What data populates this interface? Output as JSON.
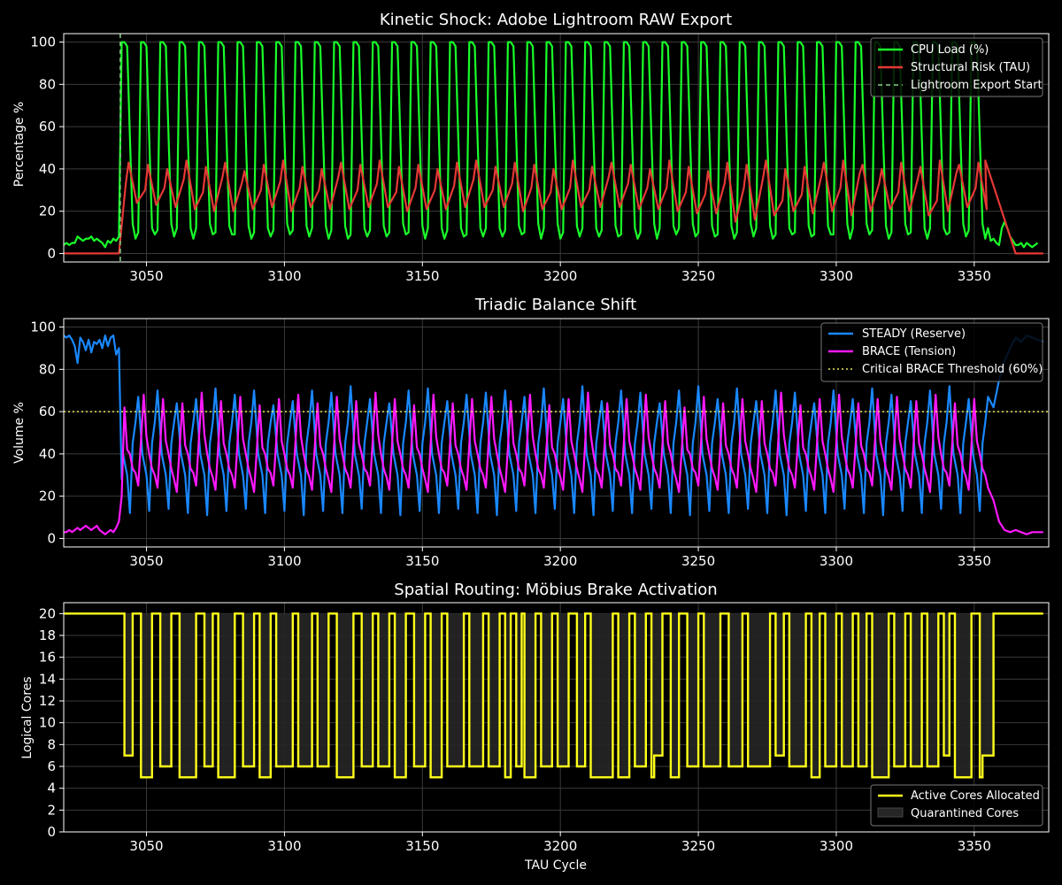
{
  "colors": {
    "background": "#000000",
    "axes_edge": "#ffffff",
    "grid": "#3a3a3a",
    "cpu": "#19ff2a",
    "risk": "#e53935",
    "steady": "#1a88ff",
    "brace": "#ff19ff",
    "threshold": "#e6e65a",
    "cores": "#ffff1a",
    "quarantine": "#262626",
    "export_marker": "#88cc88"
  },
  "chart_data": [
    {
      "id": "kinetic",
      "type": "line",
      "title": "Kinetic Shock: Adobe Lightroom RAW Export",
      "xlabel": "",
      "ylabel": "Percentage %",
      "xlim": [
        3020,
        3377
      ],
      "ylim": [
        -4,
        104
      ],
      "xticks": [
        3050,
        3100,
        3150,
        3200,
        3250,
        3300,
        3350
      ],
      "yticks": [
        0,
        20,
        40,
        60,
        80,
        100
      ],
      "grid": true,
      "legend_position": "top-right",
      "vline": {
        "x": 3040.5,
        "label": "Lightroom Export Start"
      },
      "series": [
        {
          "name": "CPU Load (%)",
          "style": "cpu",
          "x_start": 3020,
          "x_end": 3375,
          "pre_values": [
            4,
            5,
            4,
            5,
            5,
            8,
            7,
            6,
            7,
            7,
            8,
            6,
            7,
            6,
            5,
            3,
            6,
            5,
            7,
            6,
            8
          ],
          "post_values": [
            4,
            5,
            3,
            5,
            4,
            3,
            4,
            5
          ]
        },
        {
          "name": "Structural Risk (TAU)",
          "style": "risk",
          "x_start": 3020,
          "x_end": 3375
        }
      ],
      "cycles": [
        {
          "s": 3041,
          "p": 41,
          "r": 24,
          "e": 33,
          "t": 43
        },
        {
          "s": 3048,
          "p": 36,
          "r": 23,
          "e": 30,
          "t": 42
        },
        {
          "s": 3055,
          "p": 38,
          "r": 22,
          "e": 31,
          "t": 40
        },
        {
          "s": 3062,
          "p": 42,
          "r": 21,
          "e": 35,
          "t": 44
        },
        {
          "s": 3069,
          "p": 35,
          "r": 20,
          "e": 29,
          "t": 41
        },
        {
          "s": 3076,
          "p": 43,
          "r": 20,
          "e": 36,
          "t": 43
        },
        {
          "s": 3083,
          "p": 40,
          "r": 21,
          "e": 33,
          "t": 39
        },
        {
          "s": 3090,
          "p": 36,
          "r": 22,
          "e": 30,
          "t": 42
        },
        {
          "s": 3097,
          "p": 41,
          "r": 20,
          "e": 34,
          "t": 44
        },
        {
          "s": 3104,
          "p": 37,
          "r": 22,
          "e": 31,
          "t": 41
        },
        {
          "s": 3111,
          "p": 34,
          "r": 21,
          "e": 30,
          "t": 40
        },
        {
          "s": 3118,
          "p": 43,
          "r": 21,
          "e": 36,
          "t": 43
        },
        {
          "s": 3125,
          "p": 36,
          "r": 22,
          "e": 30,
          "t": 42
        },
        {
          "s": 3132,
          "p": 40,
          "r": 22,
          "e": 33,
          "t": 44
        },
        {
          "s": 3139,
          "p": 35,
          "r": 20,
          "e": 29,
          "t": 41
        },
        {
          "s": 3146,
          "p": 37,
          "r": 21,
          "e": 31,
          "t": 42
        },
        {
          "s": 3153,
          "p": 36,
          "r": 21,
          "e": 30,
          "t": 40
        },
        {
          "s": 3160,
          "p": 39,
          "r": 22,
          "e": 32,
          "t": 43
        },
        {
          "s": 3167,
          "p": 42,
          "r": 22,
          "e": 35,
          "t": 44
        },
        {
          "s": 3174,
          "p": 36,
          "r": 22,
          "e": 30,
          "t": 41
        },
        {
          "s": 3181,
          "p": 40,
          "r": 20,
          "e": 33,
          "t": 43
        },
        {
          "s": 3188,
          "p": 38,
          "r": 21,
          "e": 31,
          "t": 42
        },
        {
          "s": 3195,
          "p": 35,
          "r": 21,
          "e": 29,
          "t": 40
        },
        {
          "s": 3202,
          "p": 37,
          "r": 22,
          "e": 31,
          "t": 44
        },
        {
          "s": 3209,
          "p": 36,
          "r": 22,
          "e": 30,
          "t": 41
        },
        {
          "s": 3216,
          "p": 43,
          "r": 22,
          "e": 36,
          "t": 43
        },
        {
          "s": 3223,
          "p": 39,
          "r": 21,
          "e": 33,
          "t": 42
        },
        {
          "s": 3230,
          "p": 38,
          "r": 21,
          "e": 31,
          "t": 40
        },
        {
          "s": 3237,
          "p": 37,
          "r": 20,
          "e": 31,
          "t": 44
        },
        {
          "s": 3244,
          "p": 35,
          "r": 19,
          "e": 29,
          "t": 41
        },
        {
          "s": 3251,
          "p": 34,
          "r": 19,
          "e": 28,
          "t": 39
        },
        {
          "s": 3258,
          "p": 40,
          "r": 15,
          "e": 33,
          "t": 43
        },
        {
          "s": 3265,
          "p": 38,
          "r": 16,
          "e": 31,
          "t": 42
        },
        {
          "s": 3272,
          "p": 43,
          "r": 18,
          "e": 36,
          "t": 44
        },
        {
          "s": 3279,
          "p": 30,
          "r": 20,
          "e": 25,
          "t": 40
        },
        {
          "s": 3286,
          "p": 34,
          "r": 19,
          "e": 28,
          "t": 41
        },
        {
          "s": 3293,
          "p": 43,
          "r": 20,
          "e": 36,
          "t": 43
        },
        {
          "s": 3300,
          "p": 38,
          "r": 18,
          "e": 31,
          "t": 44
        },
        {
          "s": 3307,
          "p": 47,
          "r": 20,
          "e": 38,
          "t": 42
        },
        {
          "s": 3314,
          "p": 40,
          "r": 21,
          "e": 33,
          "t": 40
        },
        {
          "s": 3321,
          "p": 35,
          "r": 20,
          "e": 29,
          "t": 43
        },
        {
          "s": 3328,
          "p": 42,
          "r": 18,
          "e": 35,
          "t": 41
        },
        {
          "s": 3335,
          "p": 30,
          "r": 20,
          "e": 25,
          "t": 44
        },
        {
          "s": 3342,
          "p": 47,
          "r": 22,
          "e": 38,
          "t": 42
        },
        {
          "s": 3349,
          "p": 38,
          "r": 21,
          "e": 31,
          "t": 43
        }
      ]
    },
    {
      "id": "triadic",
      "type": "line",
      "title": "Triadic Balance Shift",
      "xlabel": "",
      "ylabel": "Volume %",
      "xlim": [
        3020,
        3377
      ],
      "ylim": [
        -4,
        104
      ],
      "xticks": [
        3050,
        3100,
        3150,
        3200,
        3250,
        3300,
        3350
      ],
      "yticks": [
        0,
        20,
        40,
        60,
        80,
        100
      ],
      "grid": true,
      "legend_position": "top-right",
      "hline": {
        "y": 60,
        "label": "Critical BRACE Threshold (60%)"
      },
      "series": [
        {
          "name": "STEADY (Reserve)",
          "style": "steady",
          "x_start": 3020,
          "x_end": 3375,
          "pre_values": [
            96,
            95,
            96,
            94,
            91,
            83,
            95,
            93,
            89,
            94,
            88,
            93,
            92,
            94,
            90,
            96,
            91,
            95,
            96,
            87,
            90
          ],
          "cycles_peak": [
            67,
            70,
            64,
            66,
            71,
            68,
            70,
            63,
            65,
            70,
            69,
            72,
            66,
            64,
            70,
            71,
            65,
            68,
            69,
            70,
            67,
            71,
            66,
            72,
            65,
            70,
            69,
            64,
            70,
            72,
            66,
            71,
            65,
            70,
            69,
            64,
            70,
            66,
            71,
            68,
            65,
            70,
            72,
            66,
            67
          ],
          "cycles_trough": [
            12,
            13,
            14,
            12,
            11,
            13,
            14,
            12,
            13,
            11,
            13,
            12,
            14,
            12,
            11,
            13,
            12,
            14,
            12,
            11,
            13,
            12,
            14,
            12,
            11,
            13,
            12,
            14,
            12,
            11,
            13,
            12,
            14,
            12,
            11,
            13,
            12,
            14,
            12,
            11,
            13,
            12,
            14,
            12,
            13
          ],
          "post_values": [
            62,
            75,
            84,
            90,
            95,
            93,
            96,
            95,
            94
          ]
        },
        {
          "name": "BRACE (Tension)",
          "style": "brace",
          "x_start": 3020,
          "x_end": 3375,
          "pre_values": [
            3,
            3,
            4,
            3,
            4,
            5,
            4,
            5,
            6,
            5,
            4,
            5,
            6,
            4,
            3,
            2,
            3,
            4,
            3,
            5,
            8
          ],
          "cycles_peak": [
            62,
            68,
            66,
            64,
            69,
            65,
            67,
            63,
            66,
            68,
            64,
            67,
            65,
            69,
            66,
            63,
            68,
            64,
            66,
            67,
            65,
            68,
            63,
            66,
            69,
            64,
            66,
            68,
            65,
            62,
            67,
            64,
            66,
            65,
            69,
            63,
            66,
            68,
            64,
            66,
            67,
            65,
            68,
            64,
            66
          ],
          "cycles_trough": [
            25,
            24,
            22,
            25,
            23,
            24,
            22,
            25,
            24,
            23,
            22,
            24,
            25,
            23,
            24,
            22,
            25,
            23,
            24,
            22,
            25,
            24,
            23,
            22,
            24,
            25,
            23,
            24,
            22,
            25,
            23,
            24,
            22,
            25,
            24,
            23,
            22,
            24,
            25,
            23,
            24,
            22,
            25,
            23,
            24
          ],
          "post_values": [
            18,
            8,
            4,
            3,
            4,
            3,
            2,
            3,
            3
          ]
        }
      ]
    },
    {
      "id": "spatial",
      "type": "line",
      "title": "Spatial Routing: Möbius Brake Activation",
      "xlabel": "TAU Cycle",
      "ylabel": "Logical Cores",
      "xlim": [
        3020,
        3377
      ],
      "ylim": [
        0,
        21
      ],
      "xticks": [
        3050,
        3100,
        3150,
        3200,
        3250,
        3300,
        3350
      ],
      "yticks": [
        0,
        2,
        4,
        6,
        8,
        10,
        12,
        14,
        16,
        18,
        20
      ],
      "grid": true,
      "legend_position": "bottom-right",
      "series": [
        {
          "name": "Active Cores Allocated",
          "style": "cores",
          "steps": [
            [
              3020,
              20
            ],
            [
              3042,
              7
            ],
            [
              3045,
              20
            ],
            [
              3048,
              5
            ],
            [
              3052,
              20
            ],
            [
              3055,
              6
            ],
            [
              3059,
              20
            ],
            [
              3062,
              5
            ],
            [
              3068,
              20
            ],
            [
              3071,
              6
            ],
            [
              3074,
              20
            ],
            [
              3076,
              5
            ],
            [
              3082,
              20
            ],
            [
              3085,
              6
            ],
            [
              3089,
              20
            ],
            [
              3091,
              5
            ],
            [
              3095,
              20
            ],
            [
              3097,
              6
            ],
            [
              3103,
              20
            ],
            [
              3105,
              6
            ],
            [
              3110,
              20
            ],
            [
              3112,
              6
            ],
            [
              3116,
              20
            ],
            [
              3119,
              5
            ],
            [
              3125,
              20
            ],
            [
              3128,
              6
            ],
            [
              3132,
              20
            ],
            [
              3134,
              6
            ],
            [
              3138,
              20
            ],
            [
              3140,
              5
            ],
            [
              3144,
              20
            ],
            [
              3147,
              6
            ],
            [
              3151,
              20
            ],
            [
              3153,
              5
            ],
            [
              3157,
              20
            ],
            [
              3159,
              6
            ],
            [
              3165,
              20
            ],
            [
              3167,
              6
            ],
            [
              3172,
              20
            ],
            [
              3174,
              6
            ],
            [
              3178,
              20
            ],
            [
              3180,
              5
            ],
            [
              3182,
              20
            ],
            [
              3184,
              6
            ],
            [
              3186,
              20
            ],
            [
              3187,
              5
            ],
            [
              3191,
              20
            ],
            [
              3193,
              6
            ],
            [
              3197,
              20
            ],
            [
              3199,
              6
            ],
            [
              3203,
              20
            ],
            [
              3206,
              6
            ],
            [
              3209,
              20
            ],
            [
              3211,
              5
            ],
            [
              3219,
              20
            ],
            [
              3221,
              5
            ],
            [
              3225,
              20
            ],
            [
              3227,
              6
            ],
            [
              3231,
              20
            ],
            [
              3233,
              5
            ],
            [
              3234,
              7
            ],
            [
              3237,
              20
            ],
            [
              3240,
              5
            ],
            [
              3243,
              20
            ],
            [
              3246,
              6
            ],
            [
              3250,
              20
            ],
            [
              3252,
              6
            ],
            [
              3258,
              20
            ],
            [
              3261,
              6
            ],
            [
              3266,
              20
            ],
            [
              3268,
              6
            ],
            [
              3276,
              20
            ],
            [
              3278,
              7
            ],
            [
              3281,
              20
            ],
            [
              3283,
              6
            ],
            [
              3289,
              20
            ],
            [
              3291,
              5
            ],
            [
              3294,
              20
            ],
            [
              3296,
              6
            ],
            [
              3300,
              20
            ],
            [
              3302,
              6
            ],
            [
              3306,
              20
            ],
            [
              3308,
              6
            ],
            [
              3311,
              20
            ],
            [
              3313,
              5
            ],
            [
              3319,
              20
            ],
            [
              3321,
              6
            ],
            [
              3325,
              20
            ],
            [
              3327,
              6
            ],
            [
              3331,
              20
            ],
            [
              3333,
              6
            ],
            [
              3337,
              20
            ],
            [
              3339,
              7
            ],
            [
              3341,
              20
            ],
            [
              3343,
              5
            ],
            [
              3349,
              20
            ],
            [
              3352,
              5
            ],
            [
              3353,
              7
            ],
            [
              3357,
              20
            ],
            [
              3375,
              20
            ]
          ]
        },
        {
          "name": "Quarantined Cores",
          "style": "quarantine"
        }
      ]
    }
  ]
}
